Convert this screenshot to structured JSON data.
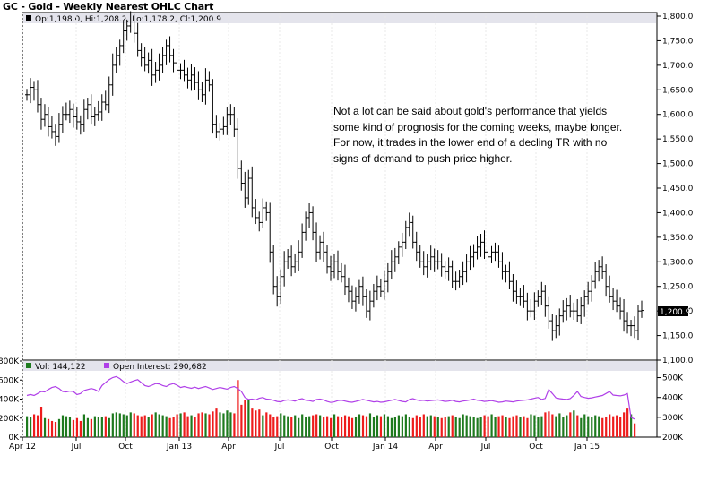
{
  "title": "GC - Gold - Weekly Nearest OHLC Chart",
  "price_panel": {
    "legend_ohlc": "Op:1,198.0, Hi:1,208.2, Lo:1,178.2, Cl:1,200.9",
    "last_price_label": "1,200.9",
    "y_ticks": [
      "1,800.0",
      "1,750.0",
      "1,700.0",
      "1,650.0",
      "1,600.0",
      "1,550.0",
      "1,500.0",
      "1,450.0",
      "1,400.0",
      "1,350.0",
      "1,300.0",
      "1,250.0",
      "1,200.0",
      "1,150.0",
      "1,100.0"
    ]
  },
  "volume_panel": {
    "legend_vol": "Vol: 144,122",
    "legend_oi": "Open Interest: 290,682",
    "left_ticks": [
      "800K",
      "600K",
      "400K",
      "200K",
      "0K"
    ],
    "right_ticks": [
      "500K",
      "400K",
      "300K",
      "200K"
    ]
  },
  "x_labels": [
    "Apr 12",
    "Jul",
    "Oct",
    "Jan 13",
    "Apr",
    "Jul",
    "Oct",
    "Jan 14",
    "Apr",
    "Jul",
    "Oct",
    "Jan 15"
  ],
  "annotation": {
    "lines": [
      "Not a lot can be said about gold's performance that yields",
      "some kind of prognosis for the coming weeks, maybe longer.",
      "For now, it trades in the lower end of a decling TR with no",
      "signs of demand to push price higher."
    ]
  },
  "colors": {
    "volume_up": "#1e7a1e",
    "volume_down": "#ee1c1c",
    "open_interest": "#b040e8",
    "price_bar": "#000000",
    "panel_header": "#e4e4ec"
  },
  "chart_data": [
    {
      "type": "ohlc",
      "title": "GC - Gold - Weekly Nearest OHLC Chart",
      "x_range": [
        "Apr 12",
        "Apr 15"
      ],
      "ylim": [
        1100,
        1800
      ],
      "close": [
        1640,
        1655,
        1650,
        1620,
        1590,
        1600,
        1575,
        1565,
        1555,
        1580,
        1600,
        1600,
        1610,
        1595,
        1585,
        1580,
        1610,
        1620,
        1595,
        1600,
        1605,
        1625,
        1620,
        1660,
        1700,
        1720,
        1740,
        1770,
        1780,
        1790,
        1765,
        1730,
        1715,
        1700,
        1710,
        1680,
        1690,
        1700,
        1720,
        1740,
        1720,
        1705,
        1690,
        1690,
        1680,
        1670,
        1680,
        1665,
        1650,
        1640,
        1670,
        1660,
        1580,
        1565,
        1570,
        1575,
        1600,
        1600,
        1570,
        1490,
        1460,
        1430,
        1470,
        1410,
        1390,
        1380,
        1410,
        1400,
        1320,
        1250,
        1230,
        1270,
        1300,
        1310,
        1290,
        1300,
        1320,
        1360,
        1390,
        1400,
        1360,
        1320,
        1340,
        1320,
        1290,
        1280,
        1300,
        1280,
        1270,
        1250,
        1240,
        1220,
        1230,
        1250,
        1230,
        1200,
        1220,
        1240,
        1250,
        1240,
        1260,
        1280,
        1300,
        1310,
        1330,
        1340,
        1370,
        1380,
        1340,
        1320,
        1300,
        1290,
        1300,
        1310,
        1300,
        1300,
        1290,
        1280,
        1290,
        1260,
        1260,
        1270,
        1280,
        1300,
        1310,
        1320,
        1330,
        1340,
        1320,
        1310,
        1320,
        1320,
        1300,
        1280,
        1280,
        1260,
        1240,
        1230,
        1230,
        1220,
        1200,
        1200,
        1220,
        1230,
        1240,
        1210,
        1180,
        1160,
        1170,
        1190,
        1200,
        1210,
        1200,
        1200,
        1190,
        1210,
        1230,
        1240,
        1260,
        1280,
        1290,
        1280,
        1250,
        1230,
        1220,
        1210,
        1200,
        1180,
        1170,
        1170,
        1160,
        1200,
        1201
      ],
      "last": 1200.9
    },
    {
      "type": "bar",
      "name": "Vol",
      "ylim": [
        0,
        800000
      ],
      "values": [
        220000,
        210000,
        240000,
        230000,
        320000,
        200000,
        190000,
        170000,
        160000,
        190000,
        230000,
        220000,
        210000,
        180000,
        200000,
        170000,
        240000,
        200000,
        190000,
        220000,
        210000,
        210000,
        220000,
        200000,
        250000,
        260000,
        250000,
        240000,
        230000,
        260000,
        250000,
        230000,
        220000,
        230000,
        210000,
        240000,
        260000,
        240000,
        230000,
        220000,
        200000,
        210000,
        240000,
        250000,
        260000,
        220000,
        230000,
        210000,
        250000,
        260000,
        250000,
        240000,
        270000,
        300000,
        260000,
        250000,
        280000,
        260000,
        250000,
        600000,
        340000,
        390000,
        400000,
        300000,
        280000,
        290000,
        230000,
        260000,
        240000,
        210000,
        220000,
        250000,
        230000,
        220000,
        210000,
        230000,
        200000,
        240000,
        210000,
        220000,
        230000,
        240000,
        230000,
        210000,
        220000,
        200000,
        240000,
        220000,
        210000,
        230000,
        220000,
        200000,
        210000,
        240000,
        230000,
        220000,
        250000,
        210000,
        230000,
        220000,
        240000,
        220000,
        200000,
        210000,
        230000,
        220000,
        240000,
        210000,
        200000,
        230000,
        210000,
        240000,
        220000,
        230000,
        220000,
        210000,
        200000,
        210000,
        220000,
        230000,
        210000,
        200000,
        240000,
        230000,
        220000,
        210000,
        200000,
        210000,
        230000,
        220000,
        240000,
        210000,
        220000,
        230000,
        210000,
        200000,
        220000,
        230000,
        210000,
        220000,
        200000,
        240000,
        230000,
        210000,
        220000,
        260000,
        270000,
        240000,
        220000,
        250000,
        210000,
        230000,
        260000,
        280000,
        230000,
        200000,
        240000,
        220000,
        210000,
        230000,
        220000,
        200000,
        210000,
        240000,
        220000,
        230000,
        210000,
        260000,
        300000,
        240000,
        144122
      ],
      "last": 144122
    },
    {
      "type": "line",
      "name": "Open Interest",
      "ylim": [
        200000,
        525000
      ],
      "values": [
        410000,
        415000,
        410000,
        420000,
        430000,
        428000,
        440000,
        450000,
        455000,
        445000,
        430000,
        428000,
        432000,
        430000,
        415000,
        420000,
        435000,
        440000,
        445000,
        440000,
        430000,
        460000,
        475000,
        490000,
        500000,
        505000,
        495000,
        480000,
        470000,
        478000,
        485000,
        490000,
        475000,
        460000,
        455000,
        462000,
        470000,
        468000,
        460000,
        455000,
        465000,
        470000,
        462000,
        450000,
        455000,
        450000,
        446000,
        452000,
        445000,
        450000,
        455000,
        448000,
        440000,
        445000,
        450000,
        446000,
        442000,
        450000,
        455000,
        445000,
        430000,
        400000,
        390000,
        392000,
        388000,
        396000,
        400000,
        392000,
        390000,
        386000,
        380000,
        378000,
        385000,
        388000,
        386000,
        382000,
        390000,
        394000,
        386000,
        384000,
        380000,
        390000,
        392000,
        388000,
        380000,
        375000,
        378000,
        384000,
        386000,
        382000,
        378000,
        376000,
        380000,
        385000,
        390000,
        386000,
        382000,
        378000,
        380000,
        376000,
        378000,
        382000,
        386000,
        390000,
        385000,
        380000,
        378000,
        390000,
        394000,
        388000,
        384000,
        386000,
        382000,
        384000,
        386000,
        388000,
        384000,
        380000,
        382000,
        386000,
        380000,
        378000,
        382000,
        384000,
        388000,
        392000,
        386000,
        384000,
        380000,
        382000,
        384000,
        380000,
        376000,
        378000,
        382000,
        380000,
        378000,
        382000,
        384000,
        386000,
        388000,
        392000,
        396000,
        400000,
        390000,
        395000,
        440000,
        420000,
        398000,
        394000,
        392000,
        390000,
        394000,
        410000,
        430000,
        405000,
        400000,
        396000,
        398000,
        402000,
        406000,
        410000,
        420000,
        430000,
        412000,
        410000,
        408000,
        412000,
        420000,
        300000,
        290682
      ],
      "last": 290682
    }
  ]
}
